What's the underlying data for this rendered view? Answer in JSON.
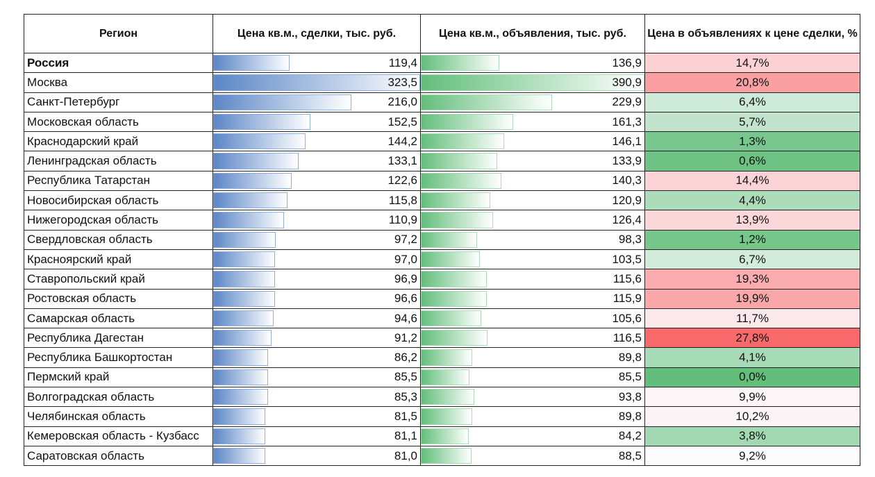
{
  "colors": {
    "bar_blue": "#5B86C6",
    "bar_green": "#63BE7B",
    "scale_low": "#63BE7B",
    "scale_mid": "#FCFCFF",
    "scale_high": "#F8696B"
  },
  "chart_data": {
    "type": "table",
    "columns": [
      "Регион",
      "Цена кв.м., сделки, тыс. руб.",
      "Цена кв.м., объявления, тыс. руб.",
      "Цена в объявлениях к цене сделки, %"
    ],
    "rows": [
      {
        "region": "Россия",
        "deal": "119,4",
        "ad": "136,9",
        "pct": "14,7%",
        "bold": true
      },
      {
        "region": "Москва",
        "deal": "323,5",
        "ad": "390,9",
        "pct": "20,8%"
      },
      {
        "region": "Санкт-Петербург",
        "deal": "216,0",
        "ad": "229,9",
        "pct": "6,4%"
      },
      {
        "region": "Московская область",
        "deal": "152,5",
        "ad": "161,3",
        "pct": "5,7%"
      },
      {
        "region": "Краснодарский край",
        "deal": "144,2",
        "ad": "146,1",
        "pct": "1,3%"
      },
      {
        "region": "Ленинградская область",
        "deal": "133,1",
        "ad": "133,9",
        "pct": "0,6%"
      },
      {
        "region": "Республика Татарстан",
        "deal": "122,6",
        "ad": "140,3",
        "pct": "14,4%"
      },
      {
        "region": "Новосибирская область",
        "deal": "115,8",
        "ad": "120,9",
        "pct": "4,4%"
      },
      {
        "region": "Нижегородская область",
        "deal": "110,9",
        "ad": "126,4",
        "pct": "13,9%"
      },
      {
        "region": "Свердловская область",
        "deal": "97,2",
        "ad": "98,3",
        "pct": "1,2%"
      },
      {
        "region": "Красноярский край",
        "deal": "97,0",
        "ad": "103,5",
        "pct": "6,7%"
      },
      {
        "region": "Ставропольский край",
        "deal": "96,9",
        "ad": "115,6",
        "pct": "19,3%"
      },
      {
        "region": "Ростовская область",
        "deal": "96,6",
        "ad": "115,9",
        "pct": "19,9%"
      },
      {
        "region": "Самарская область",
        "deal": "94,6",
        "ad": "105,6",
        "pct": "11,7%"
      },
      {
        "region": "Республика Дагестан",
        "deal": "91,2",
        "ad": "116,5",
        "pct": "27,8%"
      },
      {
        "region": "Республика Башкортостан",
        "deal": "86,2",
        "ad": "89,8",
        "pct": "4,1%"
      },
      {
        "region": "Пермский край",
        "deal": "85,5",
        "ad": "85,5",
        "pct": "0,0%"
      },
      {
        "region": "Волгоградская область",
        "deal": "85,3",
        "ad": "93,8",
        "pct": "9,9%"
      },
      {
        "region": "Челябинская область",
        "deal": "81,5",
        "ad": "89,8",
        "pct": "10,2%"
      },
      {
        "region": "Кемеровская область - Кузбасс",
        "deal": "81,1",
        "ad": "84,2",
        "pct": "3,8%"
      },
      {
        "region": "Саратовская область",
        "deal": "81,0",
        "ad": "88,5",
        "pct": "9,2%"
      }
    ]
  }
}
